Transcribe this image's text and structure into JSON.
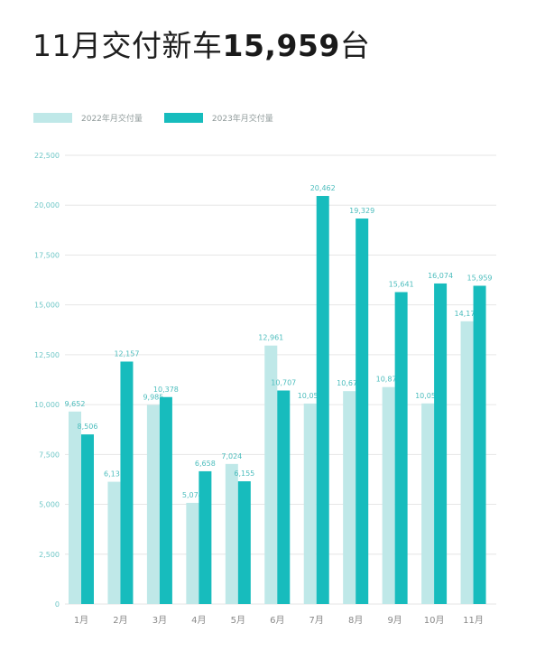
{
  "headline": {
    "prefix": "11月交付新车",
    "number": "15,959",
    "suffix": "台"
  },
  "colors": {
    "series_2022": "#bfe8e8",
    "series_2023": "#17bcbd",
    "grid": "#e6e6e6",
    "tick_text": "#6fc7c7",
    "label_text": "#4cbdbd"
  },
  "chart_data": {
    "type": "bar",
    "legend_position": "top-left",
    "grid": true,
    "categories": [
      "1月",
      "2月",
      "3月",
      "4月",
      "5月",
      "6月",
      "7月",
      "8月",
      "9月",
      "10月",
      "11月"
    ],
    "series": [
      {
        "name": "2022年月交付量",
        "values": [
          9652,
          6131,
          9985,
          5074,
          7024,
          12961,
          10052,
          10677,
          10878,
          10059,
          14178
        ],
        "labels": [
          "9,652",
          "6,131",
          "9,985",
          "5,074",
          "7,024",
          "12,961",
          "10,052",
          "10,677",
          "10,878",
          "10,059",
          "14,178"
        ]
      },
      {
        "name": "2023年月交付量",
        "values": [
          8506,
          12157,
          10378,
          6658,
          6155,
          10707,
          20462,
          19329,
          15641,
          16074,
          15959
        ],
        "labels": [
          "8,506",
          "12,157",
          "10,378",
          "6,658",
          "6,155",
          "10,707",
          "20,462",
          "19,329",
          "15,641",
          "16,074",
          "15,959"
        ]
      }
    ],
    "ylim": [
      0,
      22500
    ],
    "yticks": [
      0,
      2500,
      5000,
      7500,
      10000,
      12500,
      15000,
      17500,
      20000,
      22500
    ],
    "ytick_labels": [
      "0",
      "2,500",
      "5,000",
      "7,500",
      "10,000",
      "12,500",
      "15,000",
      "17,500",
      "20,000",
      "22,500"
    ],
    "xlabel": "",
    "ylabel": ""
  }
}
